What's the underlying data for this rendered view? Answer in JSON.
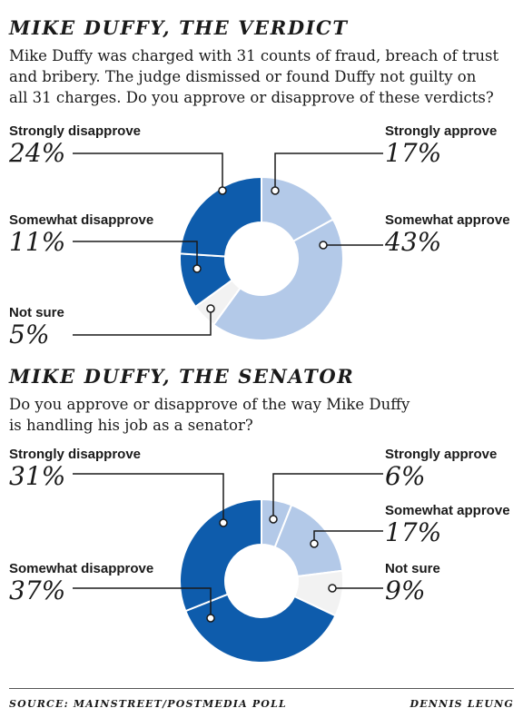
{
  "palette": {
    "strongly_disapprove": "#0e5cac",
    "somewhat_disapprove": "#0e5cac",
    "not_sure": "#f2f2f2",
    "somewhat_approve": "#b3c9e8",
    "strongly_approve": "#b3c9e8",
    "divider": "#ffffff",
    "leader": "#1a1a1a"
  },
  "chart_data": [
    {
      "type": "pie",
      "donut": true,
      "title": "MIKE DUFFY, THE VERDICT",
      "subtitle": "Mike Duffy was charged with 31 counts of fraud, breach of trust\nand bribery. The judge dismissed or found Duffy not guilty on\nall 31 charges. Do you approve or disapprove of these verdicts?",
      "slices": [
        {
          "label": "Strongly approve",
          "value": 17,
          "display": "17%",
          "color": "#b3c9e8"
        },
        {
          "label": "Somewhat approve",
          "value": 43,
          "display": "43%",
          "color": "#b3c9e8"
        },
        {
          "label": "Not sure",
          "value": 5,
          "display": "5%",
          "color": "#f2f2f2"
        },
        {
          "label": "Somewhat disapprove",
          "value": 11,
          "display": "11%",
          "color": "#0e5cac"
        },
        {
          "label": "Strongly disapprove",
          "value": 24,
          "display": "24%",
          "color": "#0e5cac"
        }
      ]
    },
    {
      "type": "pie",
      "donut": true,
      "title": "MIKE DUFFY, THE SENATOR",
      "subtitle": "Do you approve or disapprove of the way Mike Duffy\nis handling his job as a senator?",
      "slices": [
        {
          "label": "Strongly approve",
          "value": 6,
          "display": "6%",
          "color": "#b3c9e8"
        },
        {
          "label": "Somewhat approve",
          "value": 17,
          "display": "17%",
          "color": "#b3c9e8"
        },
        {
          "label": "Not sure",
          "value": 9,
          "display": "9%",
          "color": "#f2f2f2"
        },
        {
          "label": "Somewhat disapprove",
          "value": 37,
          "display": "37%",
          "color": "#0e5cac"
        },
        {
          "label": "Strongly disapprove",
          "value": 31,
          "display": "31%",
          "color": "#0e5cac"
        }
      ]
    }
  ],
  "footer": {
    "source": "SOURCE: MAINSTREET/POSTMEDIA POLL",
    "credit": "DENNIS LEUNG"
  }
}
